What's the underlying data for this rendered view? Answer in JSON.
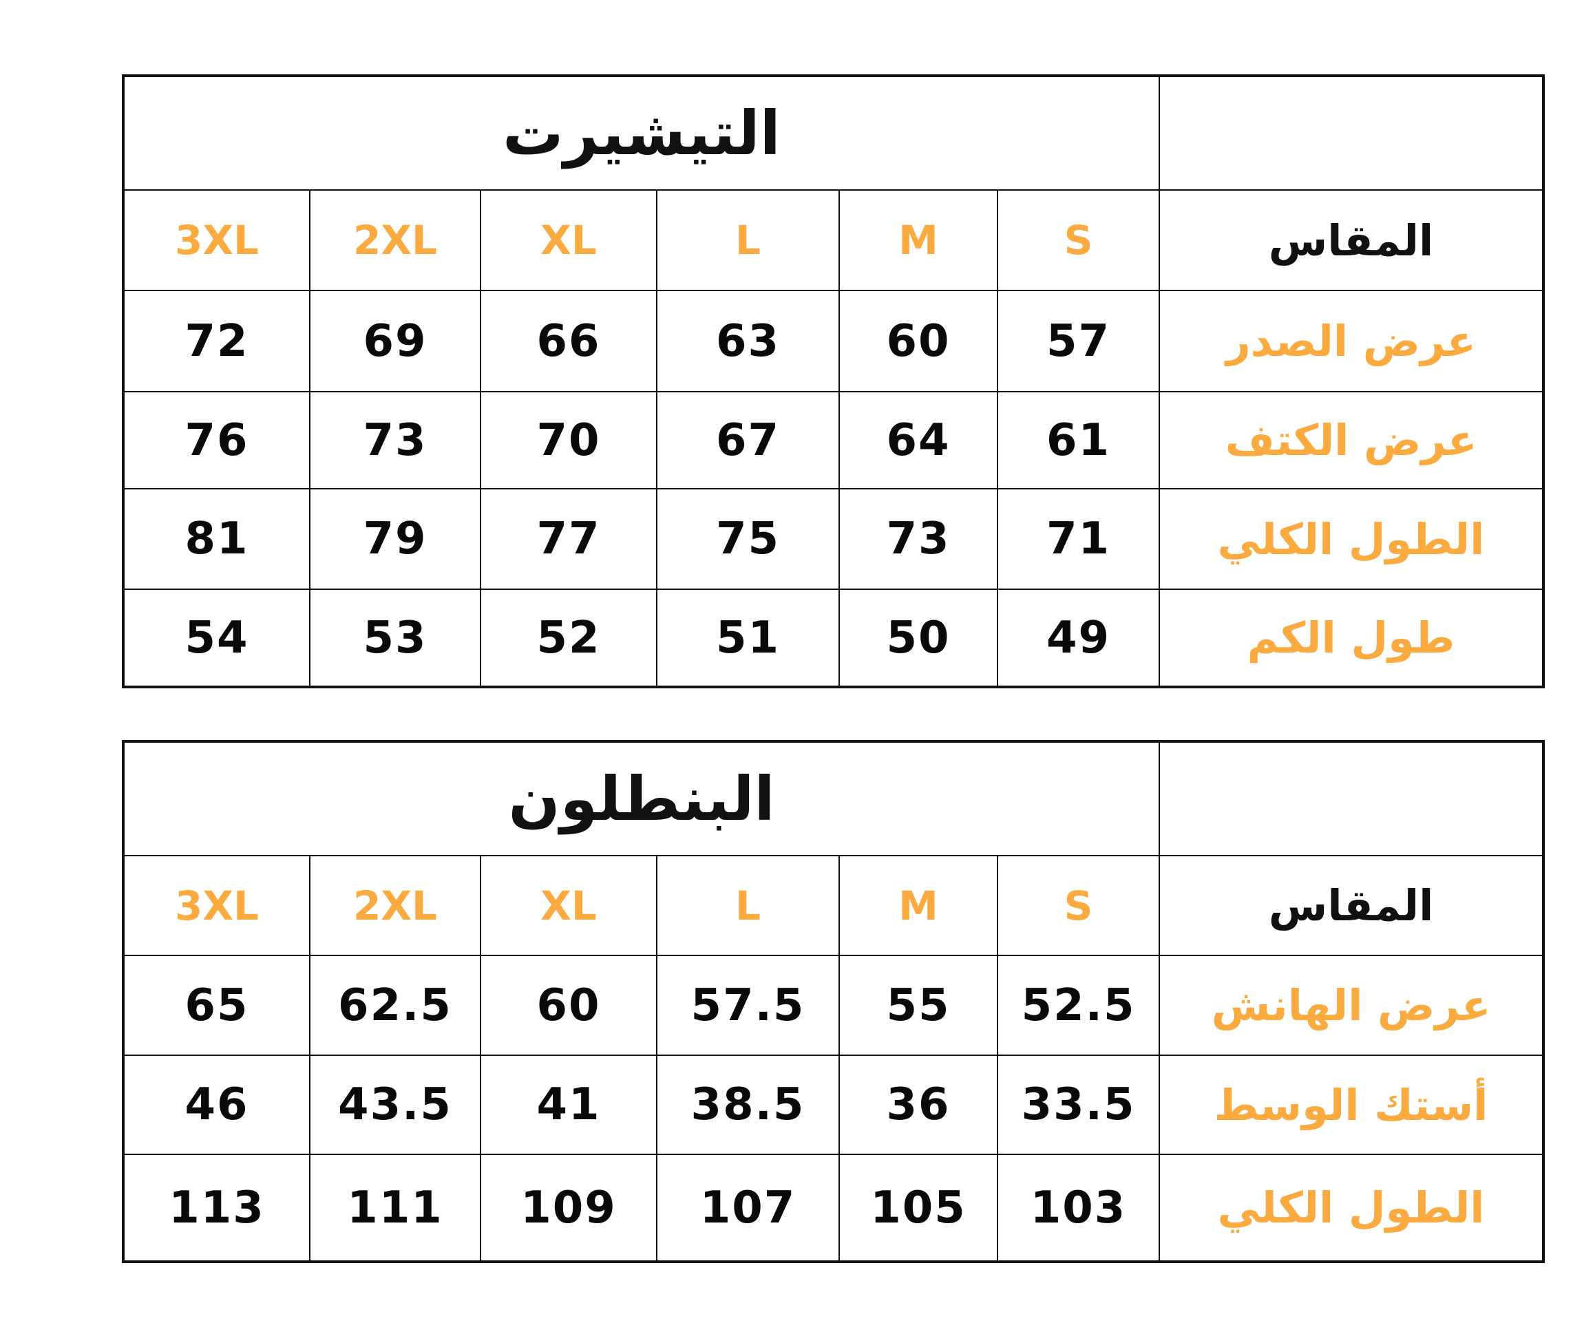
{
  "accent_color": "#fbaa3f",
  "sizes": [
    "S",
    "M",
    "L",
    "XL",
    "2XL",
    "3XL"
  ],
  "size_label": "المقاس",
  "tables": [
    {
      "title": "التيشيرت",
      "rows": [
        {
          "label": "عرض الصدر",
          "values": [
            "57",
            "60",
            "63",
            "66",
            "69",
            "72"
          ]
        },
        {
          "label": "عرض الكتف",
          "values": [
            "61",
            "64",
            "67",
            "70",
            "73",
            "76"
          ]
        },
        {
          "label": "الطول الكلي",
          "values": [
            "71",
            "73",
            "75",
            "77",
            "79",
            "81"
          ]
        },
        {
          "label": "طول الكم",
          "values": [
            "49",
            "50",
            "51",
            "52",
            "53",
            "54"
          ]
        }
      ]
    },
    {
      "title": "البنطلون",
      "rows": [
        {
          "label": "عرض الهانش",
          "values": [
            "52.5",
            "55",
            "57.5",
            "60",
            "62.5",
            "65"
          ]
        },
        {
          "label": "أستك الوسط",
          "values": [
            "33.5",
            "36",
            "38.5",
            "41",
            "43.5",
            "46"
          ]
        },
        {
          "label": "الطول الكلي",
          "values": [
            "103",
            "105",
            "107",
            "109",
            "111",
            "113"
          ]
        }
      ]
    }
  ]
}
